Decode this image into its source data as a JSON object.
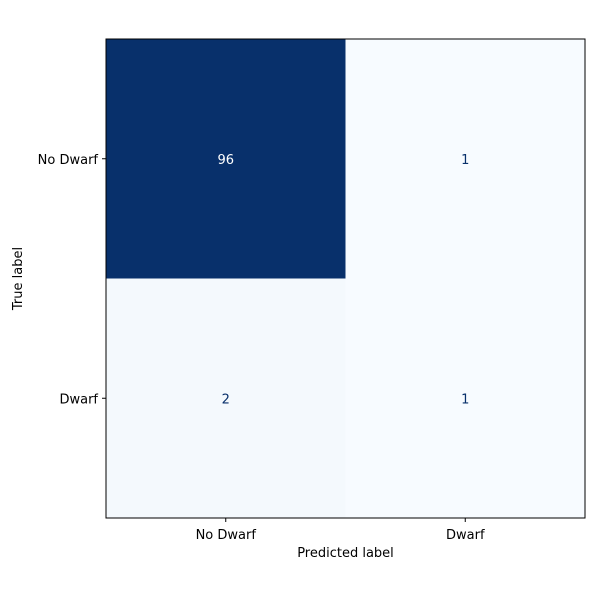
{
  "chart_data": {
    "type": "heatmap",
    "title": "",
    "xlabel": "Predicted label",
    "ylabel": "True label",
    "x_categories": [
      "No Dwarf",
      "Dwarf"
    ],
    "y_categories": [
      "No Dwarf",
      "Dwarf"
    ],
    "values": [
      [
        96,
        1
      ],
      [
        2,
        1
      ]
    ],
    "colormap": "Blues",
    "low_color": "#f7fbff",
    "high_color": "#08306b",
    "dark_text_color": "#08306b",
    "light_text_color": "#ffffff",
    "colorbar": false,
    "grid": false
  }
}
